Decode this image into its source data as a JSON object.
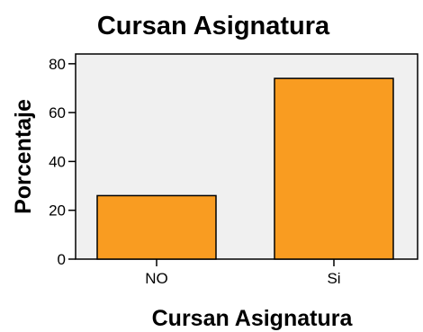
{
  "chart_data": {
    "type": "bar",
    "title": "Cursan Asignatura",
    "xlabel": "Cursan Asignatura",
    "ylabel": "Porcentaje",
    "categories": [
      "NO",
      "Si"
    ],
    "values": [
      26,
      74
    ],
    "ylim": [
      0,
      84
    ],
    "yticks": [
      0,
      20,
      40,
      60,
      80
    ],
    "grid": false,
    "legend": "none",
    "colors": {
      "bar_fill": "#f99c21",
      "bar_stroke": "#000000",
      "plot_background": "#f0f0f0",
      "plot_border": "#000000"
    }
  }
}
